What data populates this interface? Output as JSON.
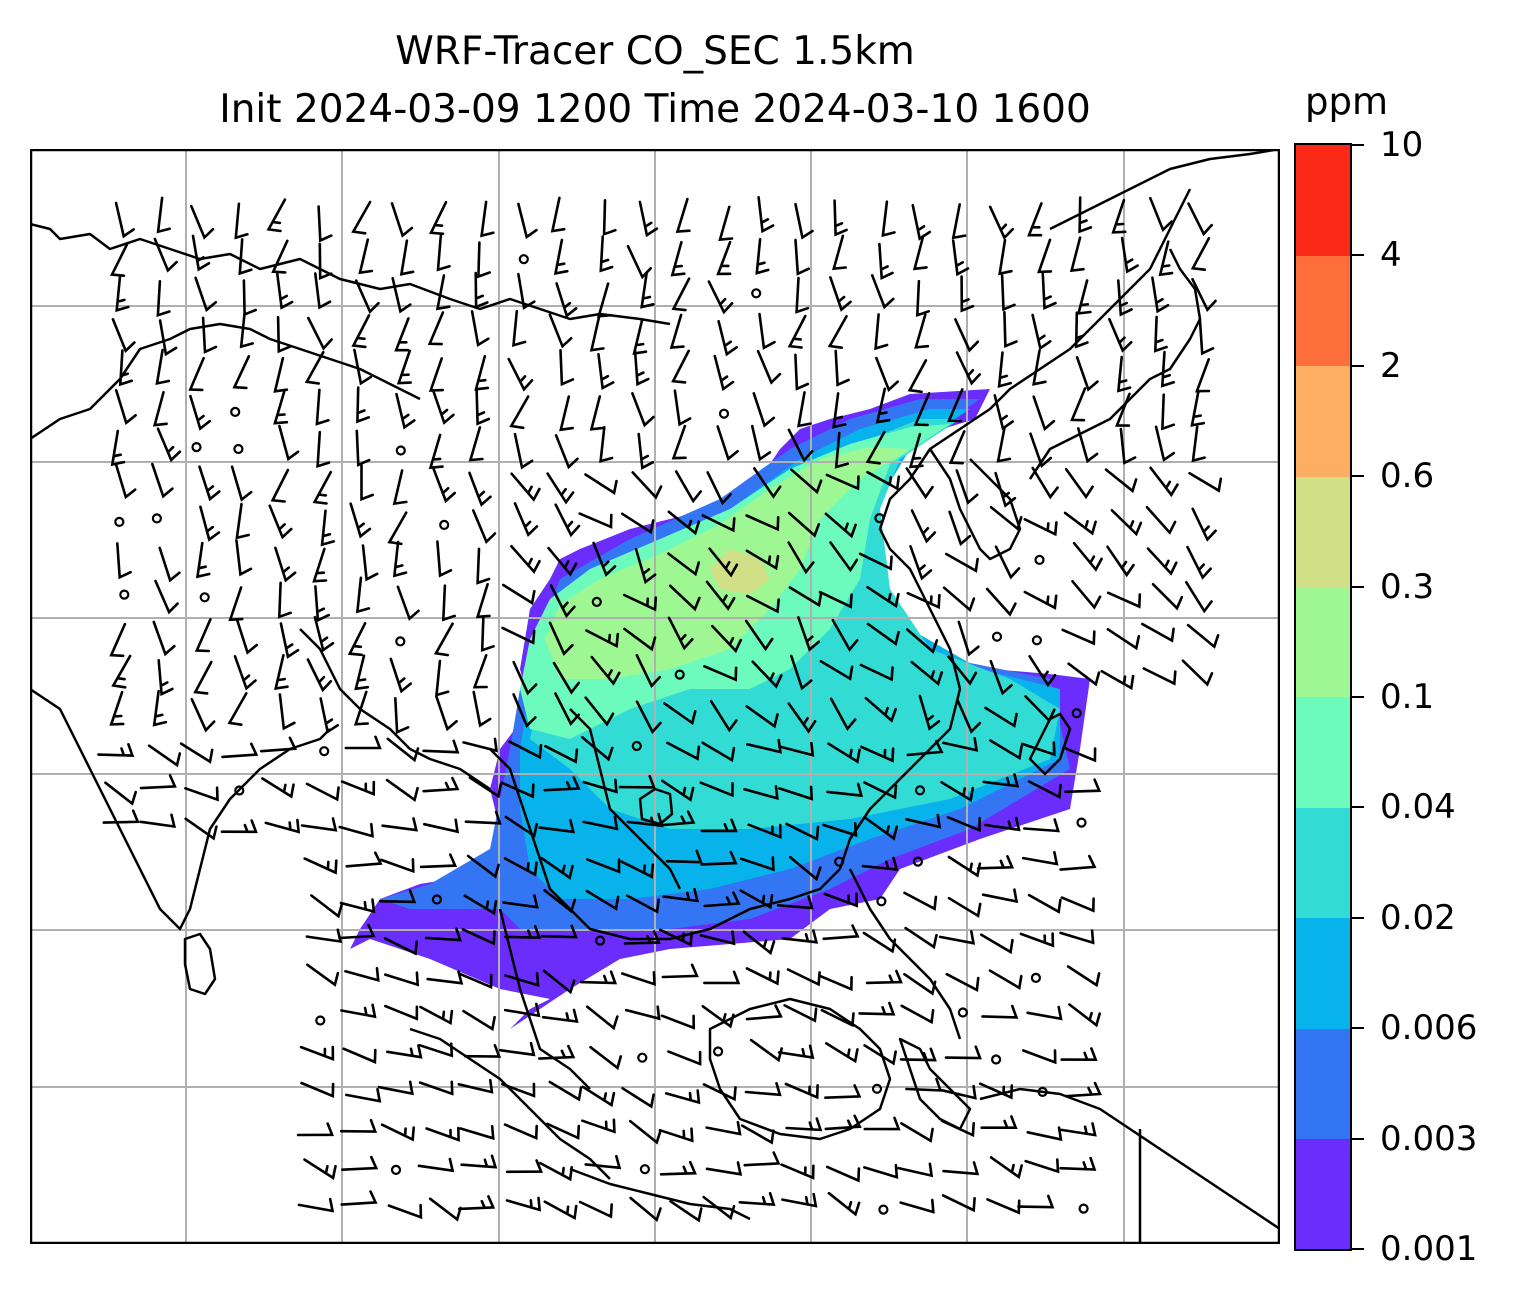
{
  "title": {
    "line1": "WRF-Tracer CO_SEC 1.5km",
    "line2": "Init 2024-03-09 1200 Time 2024-03-10 1600"
  },
  "colorbar": {
    "unit": "ppm",
    "tick_labels": [
      "0.001",
      "0.003",
      "0.006",
      "0.02",
      "0.04",
      "0.1",
      "0.3",
      "0.6",
      "2",
      "4",
      "10"
    ],
    "colors": [
      "#6a2dfb",
      "#3475f4",
      "#08b2ea",
      "#32dcd4",
      "#6cfbbd",
      "#9ef792",
      "#d1e087",
      "#fdae62",
      "#fd6e3b",
      "#fb2a18"
    ]
  },
  "map": {
    "variable": "CO_SEC",
    "level": "1.5km",
    "features": [
      "coastlines",
      "gridlines",
      "wind-barbs",
      "tracer-concentration-fill"
    ],
    "plume_colors": {
      "outer": "#6a2dfb",
      "edge": "#3475f4",
      "low": "#08b2ea",
      "mid_low": "#32dcd4",
      "mid": "#6cfbbd",
      "high": "#9ef792",
      "peak": "#d1e087"
    }
  }
}
